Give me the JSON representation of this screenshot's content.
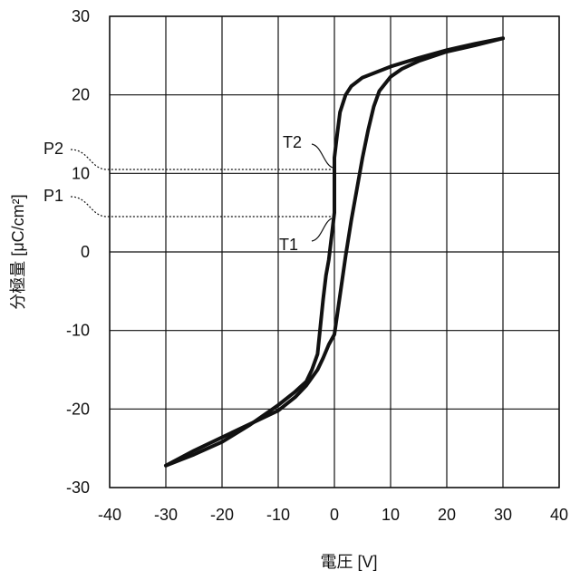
{
  "chart_data": {
    "type": "line",
    "title": "",
    "xlabel": "電圧 [V]",
    "ylabel": "分極量 [μC/cm²]",
    "xlim": [
      -40,
      40
    ],
    "ylim": [
      -30,
      30
    ],
    "xticks": [
      -40,
      -30,
      -20,
      -10,
      0,
      10,
      20,
      30,
      40
    ],
    "yticks": [
      -30,
      -20,
      -10,
      0,
      10,
      20,
      30
    ],
    "grid": true,
    "legend": "none",
    "line_color": "#111111",
    "series": [
      {
        "x": [
          -30,
          -25,
          -20,
          -15,
          -10,
          -7,
          -5,
          -3,
          -2,
          -1,
          0,
          1,
          2,
          3,
          4,
          5,
          6,
          7,
          8,
          10,
          12,
          15,
          20,
          25,
          30
        ],
        "y": [
          -27.2,
          -25.3,
          -23.6,
          -21.9,
          -20.2,
          -18.5,
          -17,
          -15,
          -13.5,
          -11.8,
          -10.5,
          -5.5,
          -0.5,
          4,
          8,
          12,
          15.5,
          18.5,
          20.5,
          22.3,
          23.3,
          24.3,
          25.5,
          26.3,
          27.2
        ]
      },
      {
        "x": [
          30,
          25,
          20,
          15,
          10,
          5,
          3,
          2,
          1,
          0.5,
          0,
          0,
          -0.5,
          -1,
          -1.5,
          -2,
          -2.5,
          -3,
          -4,
          -5,
          -7,
          -10,
          -15,
          -20,
          -25,
          -30
        ],
        "y": [
          27.2,
          26.5,
          25.7,
          24.7,
          23.6,
          22.2,
          21.1,
          20,
          17.8,
          15,
          12,
          5,
          2,
          -1,
          -3,
          -6,
          -9.5,
          -13,
          -15,
          -16.5,
          -17.8,
          -19.5,
          -22,
          -24.2,
          -25.8,
          -27.2
        ]
      }
    ],
    "annotations": [
      {
        "label": "P2",
        "y": 10.5
      },
      {
        "label": "P1",
        "y": 4.5
      },
      {
        "label": "T2",
        "x": 0,
        "y": 10.5
      },
      {
        "label": "T1",
        "x": 0,
        "y": 4.5
      }
    ]
  }
}
